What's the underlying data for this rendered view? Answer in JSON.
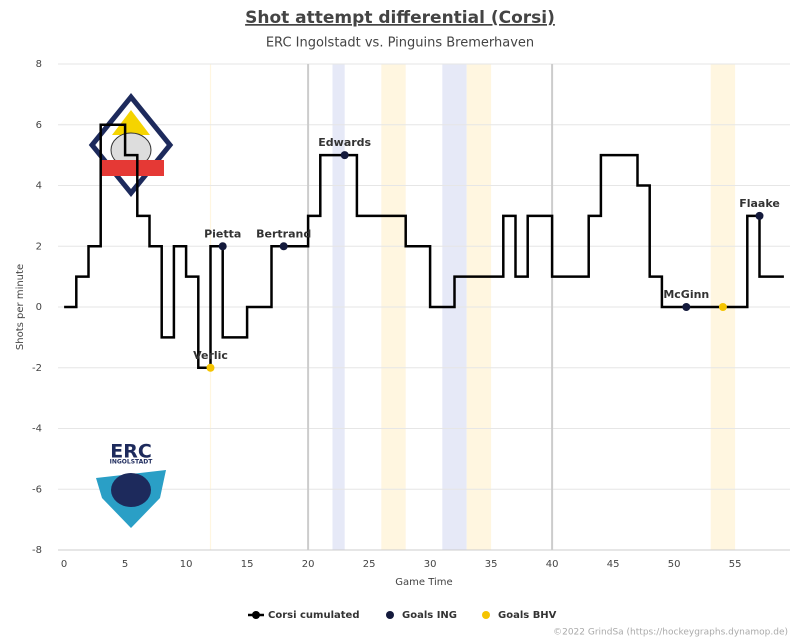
{
  "chart_data": {
    "type": "step",
    "title": "Shot attempt differential (Corsi)",
    "subtitle": "ERC Ingolstadt vs. Pinguins Bremerhaven",
    "xlabel": "Game Time",
    "ylabel": "Shots per minute",
    "xlim": [
      -0.5,
      59.5
    ],
    "ylim": [
      -8,
      8
    ],
    "xticks": [
      0,
      5,
      10,
      15,
      20,
      25,
      30,
      35,
      40,
      45,
      50,
      55
    ],
    "yticks": [
      -8,
      -6,
      -4,
      -2,
      0,
      2,
      4,
      6,
      8
    ],
    "grid": true,
    "period_lines": [
      20,
      40
    ],
    "spans": [
      {
        "start": 22,
        "end": 23,
        "color": "#e6e9f7"
      },
      {
        "start": 26,
        "end": 28,
        "color": "#fff6e0"
      },
      {
        "start": 31,
        "end": 33,
        "color": "#e6e9f7"
      },
      {
        "start": 33,
        "end": 35,
        "color": "#fff6e0"
      },
      {
        "start": 53,
        "end": 55,
        "color": "#fff6e0"
      },
      {
        "start": 11.95,
        "end": 12.05,
        "color": "#fff6e0"
      }
    ],
    "series": [
      {
        "name": "Corsi cumulated",
        "color": "#000000",
        "x": [
          0,
          1,
          2,
          3,
          5,
          6,
          7,
          8,
          9,
          10,
          11,
          12,
          13,
          15,
          17,
          20,
          21,
          24,
          28,
          30,
          32,
          36,
          37,
          38,
          40,
          43,
          44,
          47,
          48,
          49,
          56,
          57,
          59
        ],
        "values": [
          0,
          1,
          2,
          6,
          5,
          3,
          2,
          -1,
          2,
          1,
          -2,
          2,
          -1,
          0,
          2,
          3,
          5,
          3,
          2,
          0,
          1,
          3,
          1,
          3,
          1,
          3,
          5,
          4,
          1,
          0,
          3,
          1,
          1
        ]
      },
      {
        "name": "Goals ING",
        "color": "#141a3c",
        "x": [
          13,
          18,
          23,
          51,
          57
        ],
        "values": [
          2,
          2,
          5,
          0,
          3
        ],
        "labels": [
          "Pietta",
          "Bertrand",
          "Edwards",
          "McGinn",
          "Flaake"
        ]
      },
      {
        "name": "Goals BHV",
        "color": "#f5c400",
        "x": [
          12,
          54
        ],
        "values": [
          -2,
          0
        ],
        "labels": [
          "Verlic",
          null
        ]
      }
    ],
    "logo_text": [
      "ERC",
      "INGOLSTADT"
    ],
    "credit": "©2022 GrindSa (https://hockeygraphs.dynamop.de)"
  }
}
